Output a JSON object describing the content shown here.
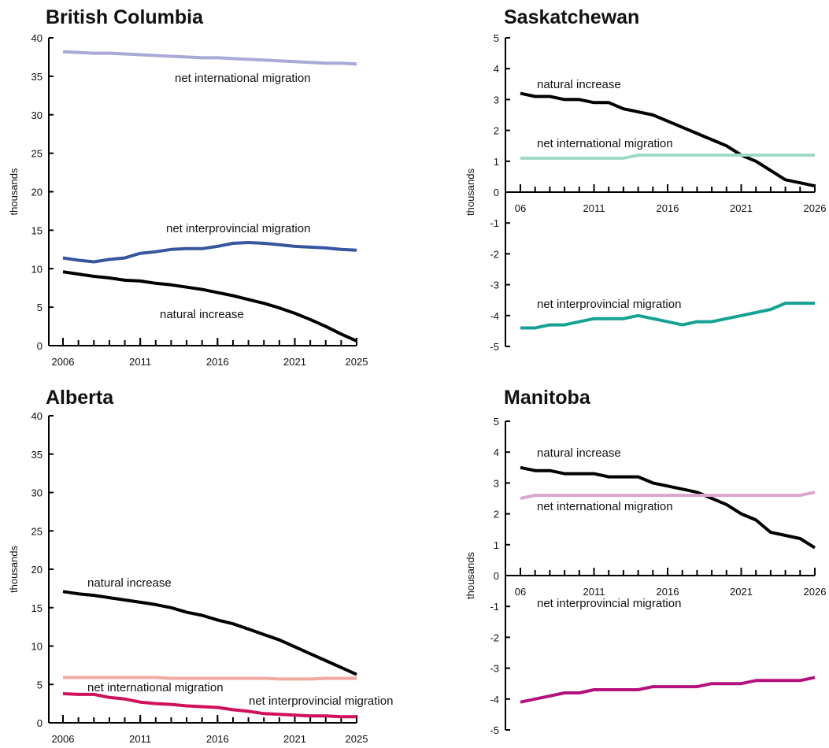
{
  "chart_data": [
    {
      "type": "line",
      "title": "British Columbia",
      "ylabel": "thousands",
      "x": [
        2006,
        2007,
        2008,
        2009,
        2010,
        2011,
        2012,
        2013,
        2014,
        2015,
        2016,
        2017,
        2018,
        2019,
        2020,
        2021,
        2022,
        2023,
        2024,
        2025
      ],
      "series": [
        {
          "name": "net international migration",
          "color": "#a9a9d8",
          "values": [
            38.2,
            38.1,
            38.0,
            38.0,
            37.9,
            37.8,
            37.7,
            37.6,
            37.5,
            37.4,
            37.4,
            37.3,
            37.2,
            37.1,
            37.0,
            36.9,
            36.8,
            36.7,
            36.7,
            36.6
          ]
        },
        {
          "name": "net interprovincial migration",
          "color": "#3656a0",
          "values": [
            11.4,
            11.1,
            10.9,
            11.2,
            11.4,
            12.0,
            12.2,
            12.5,
            12.6,
            12.6,
            12.9,
            13.3,
            13.4,
            13.3,
            13.1,
            12.9,
            12.8,
            12.7,
            12.5,
            12.4
          ]
        },
        {
          "name": "natural increase",
          "color": "#000000",
          "values": [
            9.6,
            9.3,
            9.0,
            8.8,
            8.5,
            8.4,
            8.1,
            7.9,
            7.6,
            7.3,
            6.9,
            6.5,
            6.0,
            5.5,
            4.9,
            4.2,
            3.4,
            2.5,
            1.5,
            0.6
          ]
        }
      ],
      "xlim": [
        2006,
        2025
      ],
      "xticks": [
        2006,
        2011,
        2016,
        2021,
        2025
      ],
      "ylim": [
        0,
        40
      ],
      "yticks": [
        0,
        5,
        10,
        15,
        20,
        25,
        30,
        35,
        40
      ]
    },
    {
      "type": "line",
      "title": "Saskatchewan",
      "ylabel": "thousands",
      "x": [
        2006,
        2007,
        2008,
        2009,
        2010,
        2011,
        2012,
        2013,
        2014,
        2015,
        2016,
        2017,
        2018,
        2019,
        2020,
        2021,
        2022,
        2023,
        2024,
        2025,
        2026
      ],
      "series": [
        {
          "name": "natural increase",
          "color": "#000000",
          "values": [
            3.2,
            3.1,
            3.1,
            3.0,
            3.0,
            2.9,
            2.9,
            2.7,
            2.6,
            2.5,
            2.3,
            2.1,
            1.9,
            1.7,
            1.5,
            1.2,
            1.0,
            0.7,
            0.4,
            0.3,
            0.2
          ]
        },
        {
          "name": "net international migration",
          "color": "#9fd9c8",
          "values": [
            1.1,
            1.1,
            1.1,
            1.1,
            1.1,
            1.1,
            1.1,
            1.1,
            1.2,
            1.2,
            1.2,
            1.2,
            1.2,
            1.2,
            1.2,
            1.2,
            1.2,
            1.2,
            1.2,
            1.2,
            1.2
          ]
        },
        {
          "name": "net interprovincial migration",
          "color": "#16a195",
          "values": [
            -4.4,
            -4.4,
            -4.3,
            -4.3,
            -4.2,
            -4.1,
            -4.1,
            -4.1,
            -4.0,
            -4.1,
            -4.2,
            -4.3,
            -4.2,
            -4.2,
            -4.1,
            -4.0,
            -3.9,
            -3.8,
            -3.6,
            -3.6,
            -3.6
          ]
        }
      ],
      "xlim": [
        2006,
        2026
      ],
      "xticks": [
        {
          "value": 2006,
          "label": "06"
        },
        2011,
        2016,
        2021,
        2026
      ],
      "ylim": [
        -5,
        5
      ],
      "yticks": [
        -5,
        -4,
        -3,
        -2,
        -1,
        0,
        1,
        2,
        3,
        4,
        5
      ]
    },
    {
      "type": "line",
      "title": "Alberta",
      "ylabel": "thousands",
      "x": [
        2006,
        2007,
        2008,
        2009,
        2010,
        2011,
        2012,
        2013,
        2014,
        2015,
        2016,
        2017,
        2018,
        2019,
        2020,
        2021,
        2022,
        2023,
        2024,
        2025
      ],
      "series": [
        {
          "name": "natural increase",
          "color": "#000000",
          "values": [
            17.1,
            16.8,
            16.6,
            16.3,
            16.0,
            15.7,
            15.4,
            15.0,
            14.4,
            14.0,
            13.4,
            12.9,
            12.2,
            11.5,
            10.8,
            9.9,
            9.0,
            8.1,
            7.2,
            6.3
          ]
        },
        {
          "name": "net international migration",
          "color": "#f0aaa0",
          "values": [
            5.9,
            5.9,
            5.9,
            5.9,
            5.9,
            5.9,
            5.9,
            5.8,
            5.8,
            5.8,
            5.8,
            5.8,
            5.8,
            5.8,
            5.7,
            5.7,
            5.7,
            5.8,
            5.8,
            5.8
          ]
        },
        {
          "name": "net interprovincial migration",
          "color": "#d0105a",
          "values": [
            3.8,
            3.7,
            3.7,
            3.3,
            3.1,
            2.7,
            2.5,
            2.4,
            2.2,
            2.1,
            2.0,
            1.7,
            1.5,
            1.2,
            1.1,
            1.0,
            0.9,
            0.9,
            0.8,
            0.8
          ]
        }
      ],
      "xlim": [
        2006,
        2025
      ],
      "xticks": [
        2006,
        2011,
        2016,
        2021,
        2025
      ],
      "ylim": [
        0,
        40
      ],
      "yticks": [
        0,
        5,
        10,
        15,
        20,
        25,
        30,
        35,
        40
      ]
    },
    {
      "type": "line",
      "title": "Manitoba",
      "ylabel": "thousands",
      "x": [
        2006,
        2007,
        2008,
        2009,
        2010,
        2011,
        2012,
        2013,
        2014,
        2015,
        2016,
        2017,
        2018,
        2019,
        2020,
        2021,
        2022,
        2023,
        2024,
        2025,
        2026
      ],
      "series": [
        {
          "name": "natural increase",
          "color": "#000000",
          "values": [
            3.5,
            3.4,
            3.4,
            3.3,
            3.3,
            3.3,
            3.2,
            3.2,
            3.2,
            3.0,
            2.9,
            2.8,
            2.7,
            2.5,
            2.3,
            2.0,
            1.8,
            1.4,
            1.3,
            1.2,
            0.9
          ]
        },
        {
          "name": "net international migration",
          "color": "#dba5cc",
          "values": [
            2.5,
            2.6,
            2.6,
            2.6,
            2.6,
            2.6,
            2.6,
            2.6,
            2.6,
            2.6,
            2.6,
            2.6,
            2.6,
            2.6,
            2.6,
            2.6,
            2.6,
            2.6,
            2.6,
            2.6,
            2.7
          ]
        },
        {
          "name": "net interprovincial migration",
          "color": "#b5117e",
          "values": [
            -4.1,
            -4.0,
            -3.9,
            -3.8,
            -3.8,
            -3.7,
            -3.7,
            -3.7,
            -3.7,
            -3.6,
            -3.6,
            -3.6,
            -3.6,
            -3.5,
            -3.5,
            -3.5,
            -3.4,
            -3.4,
            -3.4,
            -3.4,
            -3.3
          ]
        }
      ],
      "xlim": [
        2006,
        2026
      ],
      "xticks": [
        {
          "value": 2006,
          "label": "06"
        },
        2011,
        2016,
        2021,
        2026
      ],
      "ylim": [
        -5,
        5
      ],
      "yticks": [
        -5,
        -4,
        -3,
        -2,
        -1,
        0,
        1,
        2,
        3,
        4,
        5
      ]
    }
  ]
}
